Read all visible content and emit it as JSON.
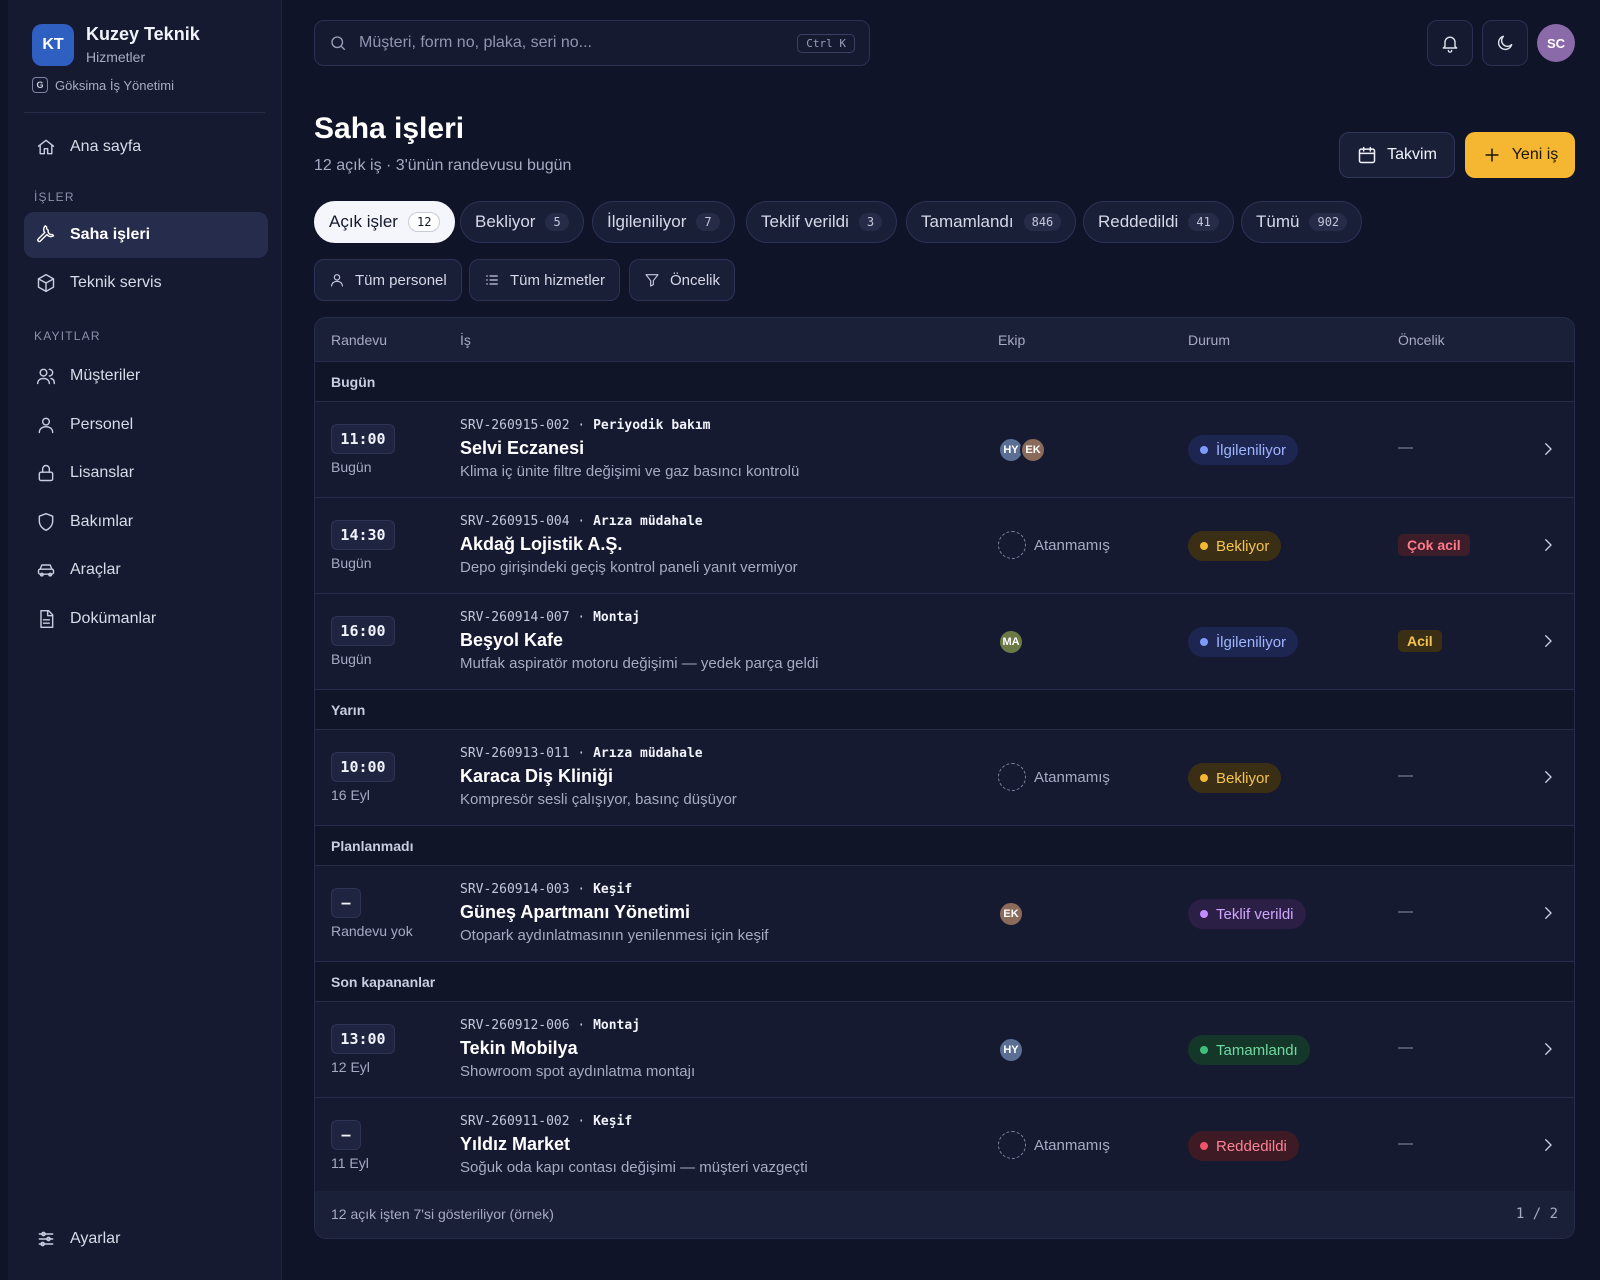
{
  "brand": {
    "initials": "KT",
    "name": "Kuzey Teknik",
    "subtitle": "Hizmetler",
    "org_badge": "G",
    "org_name": "Göksima İş Yönetimi"
  },
  "sidebar": {
    "home": "Ana sayfa",
    "section_jobs": "İŞLER",
    "field_jobs": "Saha işleri",
    "tech_service": "Teknik servis",
    "section_records": "KAYITLAR",
    "customers": "Müşteriler",
    "staff": "Personel",
    "licenses": "Lisanslar",
    "maintenance": "Bakımlar",
    "vehicles": "Araçlar",
    "documents": "Dokümanlar",
    "settings": "Ayarlar"
  },
  "search": {
    "placeholder": "Müşteri, form no, plaka, seri no...",
    "shortcut": "Ctrl K"
  },
  "user": {
    "initials": "SC"
  },
  "header": {
    "title": "Saha işleri",
    "subtitle": "12 açık iş · 3'ünün randevusu bugün",
    "calendar_label": "Takvim",
    "new_label": "Yeni iş"
  },
  "tabs": [
    {
      "label": "Açık işler",
      "count": "12"
    },
    {
      "label": "Bekliyor",
      "count": "5"
    },
    {
      "label": "İlgileniliyor",
      "count": "7"
    },
    {
      "label": "Teklif verildi",
      "count": "3"
    },
    {
      "label": "Tamamlandı",
      "count": "846"
    },
    {
      "label": "Reddedildi",
      "count": "41"
    },
    {
      "label": "Tümü",
      "count": "902"
    }
  ],
  "filters": {
    "staff": "Tüm personel",
    "services": "Tüm hizmetler",
    "priority": "Öncelik"
  },
  "table": {
    "columns": {
      "appointment": "Randevu",
      "job": "İş",
      "team": "Ekip",
      "status": "Durum",
      "priority": "Öncelik"
    },
    "groups": {
      "today": "Bugün",
      "tomorrow": "Yarın",
      "unplanned": "Planlanmadı",
      "recent": "Son kapananlar"
    },
    "unassigned_label": "Atanmamış",
    "rows": [
      {
        "time": "11:00",
        "date": "Bugün",
        "code": "SRV-260915-002",
        "type": "Periyodik bakım",
        "title": "Selvi Eczanesi",
        "desc": "Klima iç ünite filtre değişimi ve gaz basıncı kontrolü",
        "team": [
          "HY",
          "EK"
        ],
        "status": "İlgileniliyor",
        "priority": "—"
      },
      {
        "time": "14:30",
        "date": "Bugün",
        "code": "SRV-260915-004",
        "type": "Arıza müdahale",
        "title": "Akdağ Lojistik A.Ş.",
        "desc": "Depo girişindeki geçiş kontrol paneli yanıt vermiyor",
        "team": [],
        "status": "Bekliyor",
        "priority": "Çok acil"
      },
      {
        "time": "16:00",
        "date": "Bugün",
        "code": "SRV-260914-007",
        "type": "Montaj",
        "title": "Beşyol Kafe",
        "desc": "Mutfak aspiratör motoru değişimi — yedek parça geldi",
        "team": [
          "MA"
        ],
        "status": "İlgileniliyor",
        "priority": "Acil"
      },
      {
        "time": "10:00",
        "date": "16 Eyl",
        "code": "SRV-260913-011",
        "type": "Arıza müdahale",
        "title": "Karaca Diş Kliniği",
        "desc": "Kompresör sesli çalışıyor, basınç düşüyor",
        "team": [],
        "status": "Bekliyor",
        "priority": "—"
      },
      {
        "time": "–",
        "date": "Randevu yok",
        "code": "SRV-260914-003",
        "type": "Keşif",
        "title": "Güneş Apartmanı Yönetimi",
        "desc": "Otopark aydınlatmasının yenilenmesi için keşif",
        "team": [
          "EK"
        ],
        "status": "Teklif verildi",
        "priority": "—"
      },
      {
        "time": "13:00",
        "date": "12 Eyl",
        "code": "SRV-260912-006",
        "type": "Montaj",
        "title": "Tekin Mobilya",
        "desc": "Showroom spot aydınlatma montajı",
        "team": [
          "HY"
        ],
        "status": "Tamamlandı",
        "priority": "—"
      },
      {
        "time": "–",
        "date": "11 Eyl",
        "code": "SRV-260911-002",
        "type": "Keşif",
        "title": "Yıldız Market",
        "desc": "Soğuk oda kapı contası değişimi — müşteri vazgeçti",
        "team": [],
        "status": "Reddedildi",
        "priority": "—"
      }
    ],
    "footer": {
      "summary": "12 açık işten 7'si gösteriliyor (örnek)",
      "page": "1",
      "separator": "/",
      "total_pages": "2"
    }
  },
  "colors": {
    "accent": "#f5b731",
    "status_in_progress": "#7c9cff",
    "status_waiting": "#f5b731",
    "status_quoted": "#c08cff",
    "status_done": "#3ec07a",
    "status_rejected": "#f0546a",
    "priority_very_urgent": "#ff7a8a",
    "priority_urgent": "#f5b731"
  }
}
